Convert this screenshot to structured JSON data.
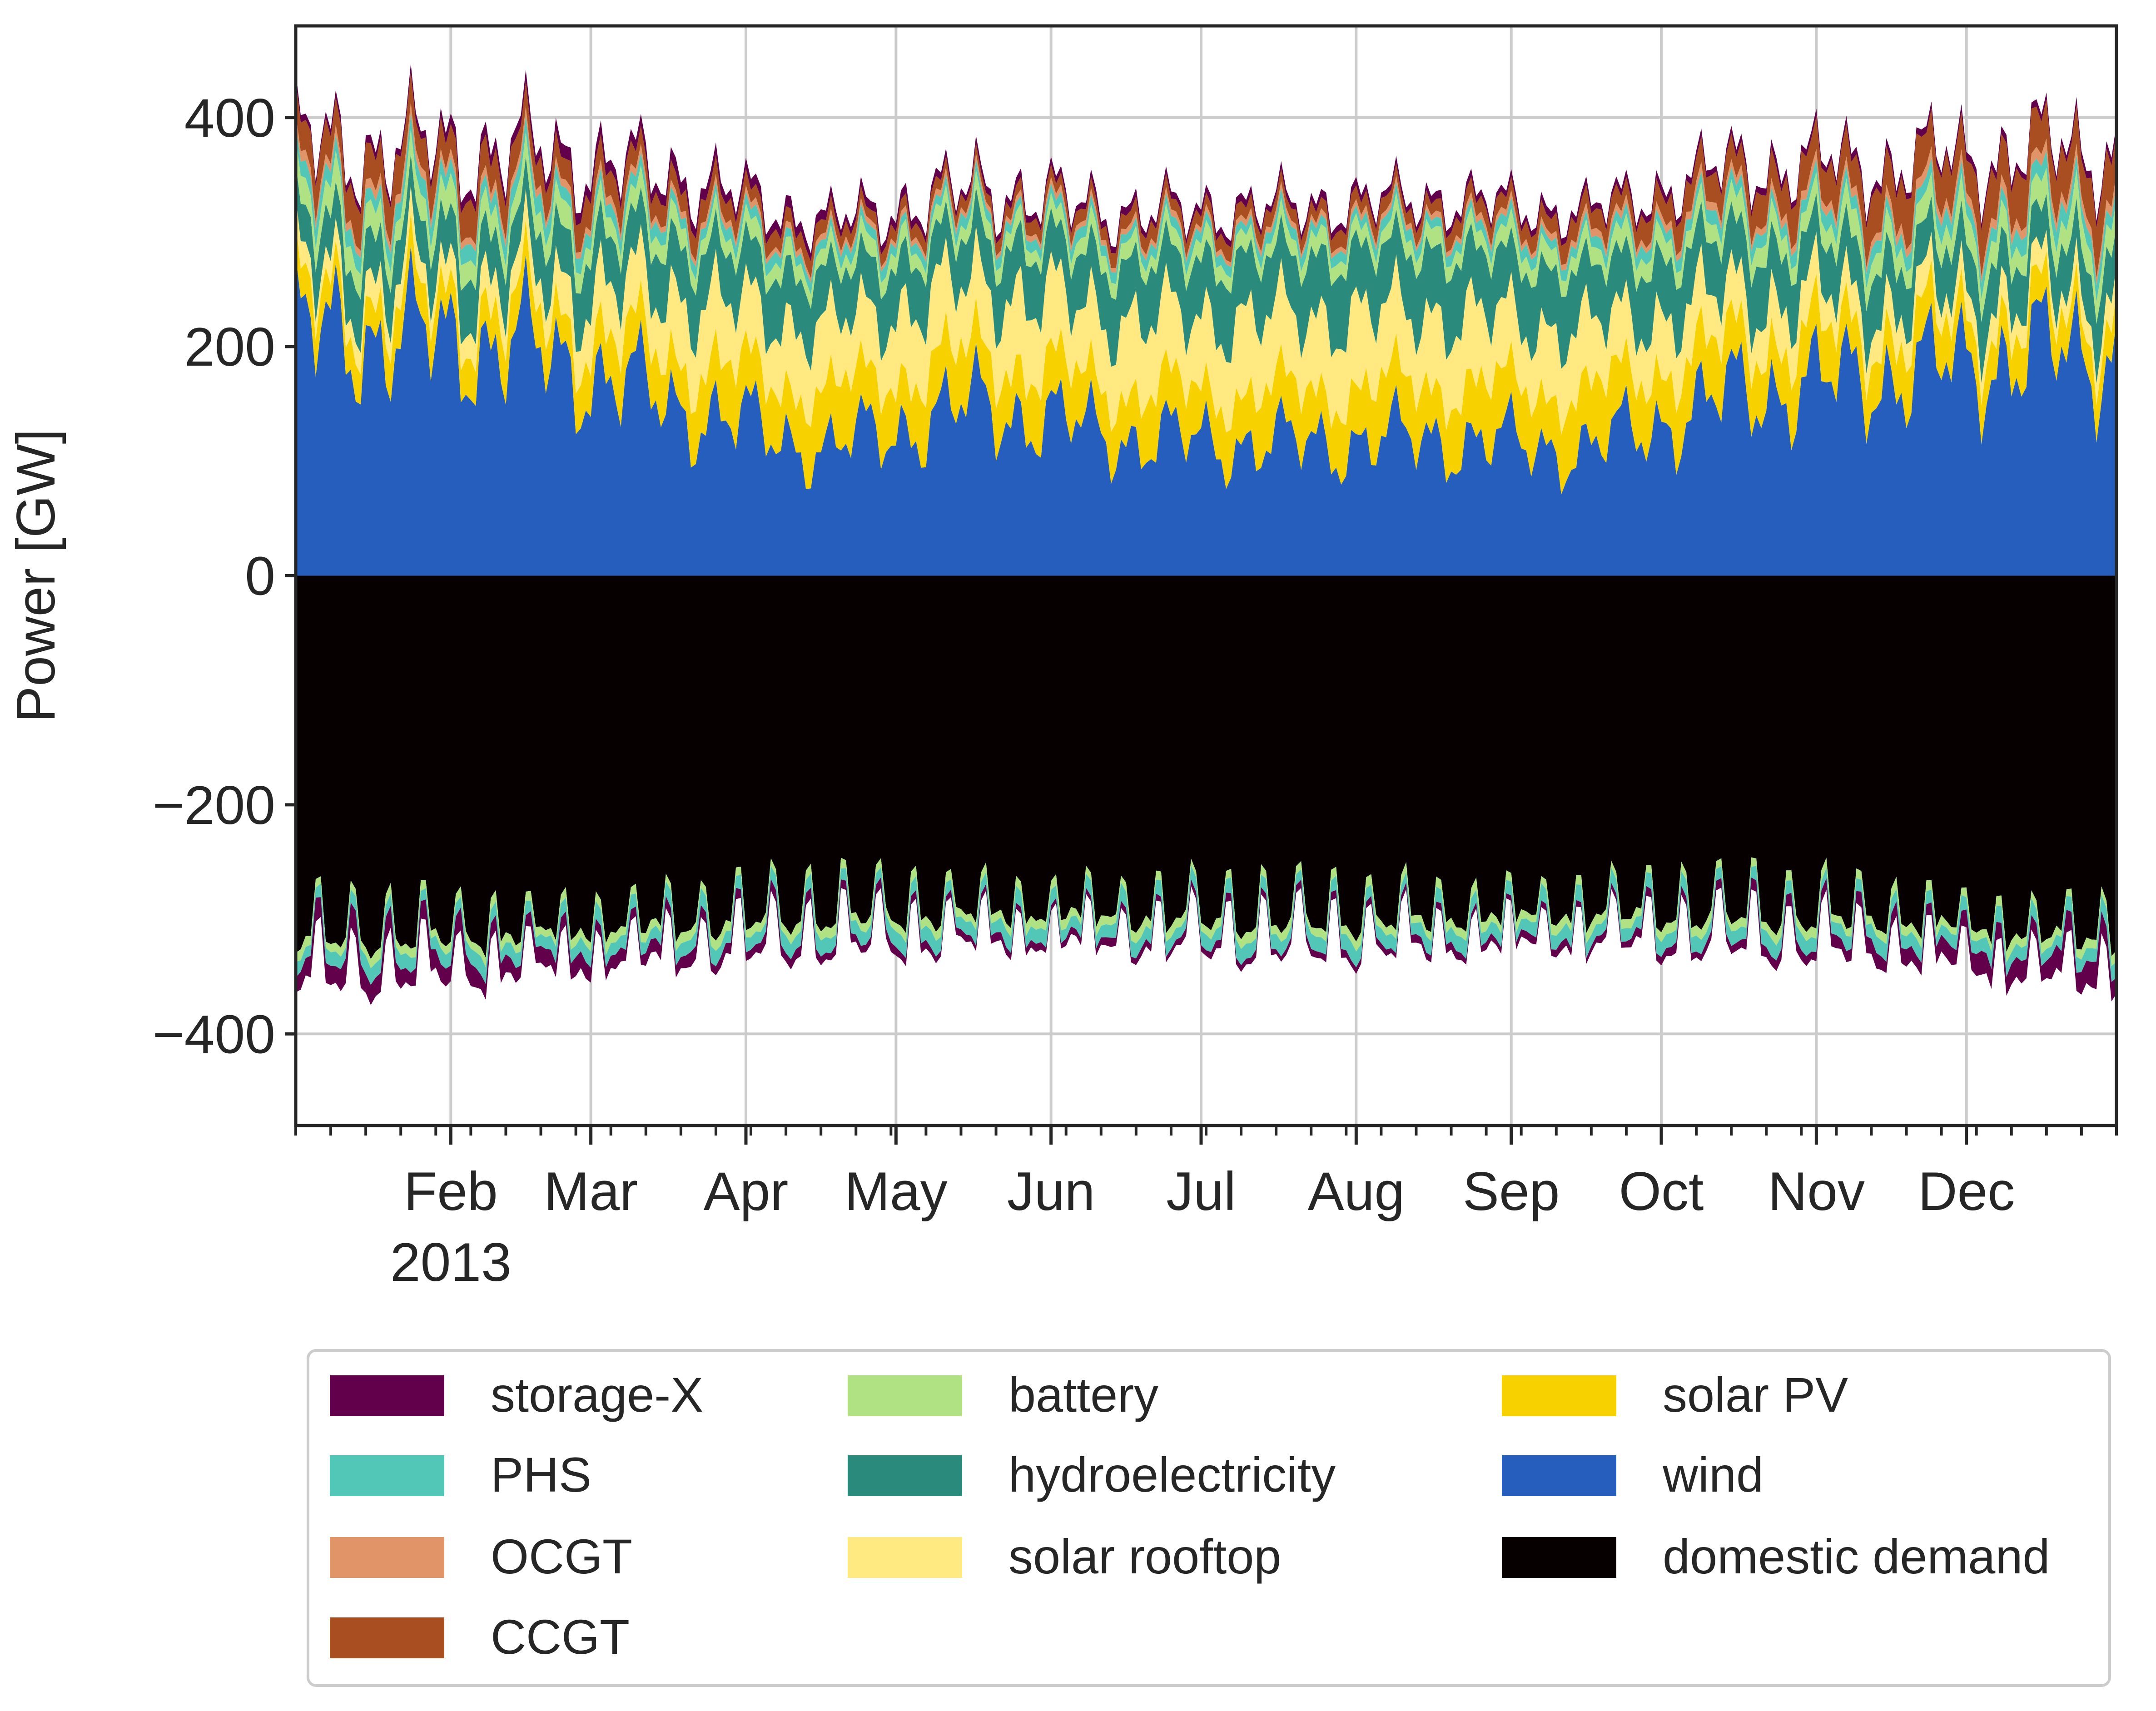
{
  "chart_data": {
    "type": "area",
    "title": "",
    "xlabel": "",
    "ylabel": "Power [GW]",
    "x_tick_labels": [
      "Feb",
      "Mar",
      "Apr",
      "May",
      "Jun",
      "Jul",
      "Aug",
      "Sep",
      "Oct",
      "Nov",
      "Dec"
    ],
    "x_year_label": "2013",
    "x_range": [
      "2013-01-01",
      "2013-12-31"
    ],
    "ylim": [
      -480,
      480
    ],
    "yticks": [
      -400,
      -200,
      0,
      200,
      400
    ],
    "ytick_labels": [
      "−400",
      "−200",
      "0",
      "200",
      "400"
    ],
    "grid": true,
    "legend_position": "bottom",
    "stack_order": [
      "wind",
      "solar PV",
      "solar rooftop",
      "hydroelectricity",
      "battery",
      "PHS",
      "OCGT",
      "CCGT",
      "storage-X"
    ],
    "supply_series": [
      {
        "name": "wind",
        "color": "#255ebc",
        "monthly_mean": [
          210,
          200,
          150,
          110,
          150,
          120,
          115,
          120,
          110,
          160,
          175,
          195
        ]
      },
      {
        "name": "solar PV",
        "color": "#f7d100",
        "monthly_mean": [
          28,
          32,
          42,
          50,
          45,
          42,
          45,
          48,
          50,
          45,
          38,
          30
        ]
      },
      {
        "name": "solar rooftop",
        "color": "#ffe980",
        "monthly_mean": [
          20,
          25,
          55,
          55,
          60,
          62,
          65,
          62,
          55,
          40,
          25,
          20
        ]
      },
      {
        "name": "hydroelectricity",
        "color": "#2a8b7d",
        "monthly_mean": [
          38,
          40,
          45,
          45,
          42,
          48,
          52,
          55,
          50,
          48,
          42,
          40
        ]
      },
      {
        "name": "battery",
        "color": "#b0e183",
        "monthly_mean": [
          22,
          20,
          16,
          14,
          14,
          14,
          14,
          14,
          16,
          18,
          20,
          22
        ]
      },
      {
        "name": "PHS",
        "color": "#52c7b8",
        "monthly_mean": [
          14,
          14,
          10,
          9,
          9,
          9,
          9,
          9,
          9,
          11,
          12,
          14
        ]
      },
      {
        "name": "OCGT",
        "color": "#e09468",
        "monthly_mean": [
          8,
          7,
          6,
          5,
          5,
          5,
          5,
          5,
          6,
          7,
          8,
          9
        ]
      },
      {
        "name": "CCGT",
        "color": "#a84e21",
        "monthly_mean": [
          30,
          25,
          18,
          12,
          10,
          12,
          12,
          12,
          16,
          25,
          35,
          38
        ]
      },
      {
        "name": "storage-X",
        "color": "#62004b",
        "monthly_mean": [
          6,
          10,
          10,
          8,
          6,
          6,
          6,
          6,
          6,
          6,
          6,
          6
        ]
      }
    ],
    "demand_series": [
      {
        "name": "domestic demand",
        "color": "#060000",
        "monthly_mean": [
          -320,
          -318,
          -310,
          -300,
          -300,
          -302,
          -305,
          -305,
          -300,
          -300,
          -305,
          -320
        ]
      },
      {
        "name": "battery",
        "color": "#b0e183",
        "monthly_mean": [
          -8,
          -8,
          -8,
          -8,
          -8,
          -8,
          -8,
          -8,
          -8,
          -8,
          -8,
          -8
        ]
      },
      {
        "name": "PHS",
        "color": "#52c7b8",
        "monthly_mean": [
          -12,
          -12,
          -12,
          -12,
          -12,
          -12,
          -12,
          -12,
          -12,
          -12,
          -12,
          -12
        ]
      },
      {
        "name": "storage-X",
        "color": "#62004b",
        "monthly_mean": [
          -18,
          -14,
          -10,
          -8,
          -6,
          -6,
          -6,
          -6,
          -6,
          -8,
          -12,
          -18
        ]
      }
    ],
    "legend": [
      {
        "label": "storage-X",
        "color": "#62004b"
      },
      {
        "label": "PHS",
        "color": "#52c7b8"
      },
      {
        "label": "OCGT",
        "color": "#e09468"
      },
      {
        "label": "CCGT",
        "color": "#a84e21"
      },
      {
        "label": "battery",
        "color": "#b0e183"
      },
      {
        "label": "hydroelectricity",
        "color": "#2a8b7d"
      },
      {
        "label": "solar rooftop",
        "color": "#ffe980"
      },
      {
        "label": "solar PV",
        "color": "#f7d100"
      },
      {
        "label": "wind",
        "color": "#255ebc"
      },
      {
        "label": "domestic demand",
        "color": "#060000"
      }
    ]
  }
}
